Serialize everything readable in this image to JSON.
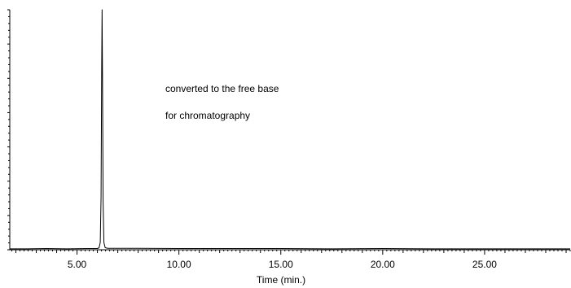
{
  "chart_data": {
    "type": "line",
    "title": "",
    "xlabel": "Time (min.)",
    "ylabel": "",
    "xlim": [
      1.7,
      29.2
    ],
    "ylim": [
      0,
      100
    ],
    "x_ticks": [
      5.0,
      10.0,
      15.0,
      20.0,
      25.0
    ],
    "x_tick_labels": [
      "5.00",
      "10.00",
      "15.00",
      "20.00",
      "25.00"
    ],
    "grid": false,
    "legend": "none",
    "series": [
      {
        "color": "#000000",
        "points": [
          [
            1.7,
            0.4
          ],
          [
            2.5,
            0.4
          ],
          [
            3.5,
            0.5
          ],
          [
            4.5,
            0.4
          ],
          [
            5.5,
            0.5
          ],
          [
            6.0,
            0.5
          ],
          [
            6.08,
            0.8
          ],
          [
            6.14,
            3.0
          ],
          [
            6.18,
            22.0
          ],
          [
            6.21,
            75.0
          ],
          [
            6.23,
            100.0
          ],
          [
            6.25,
            72.0
          ],
          [
            6.28,
            20.0
          ],
          [
            6.32,
            3.0
          ],
          [
            6.38,
            0.9
          ],
          [
            6.5,
            0.6
          ],
          [
            8.0,
            0.6
          ],
          [
            10.0,
            0.5
          ],
          [
            12.5,
            0.5
          ],
          [
            15.0,
            0.5
          ],
          [
            17.5,
            0.4
          ],
          [
            20.0,
            0.5
          ],
          [
            22.5,
            0.4
          ],
          [
            25.0,
            0.4
          ],
          [
            27.5,
            0.4
          ],
          [
            29.2,
            0.4
          ]
        ]
      }
    ],
    "annotations": [
      "converted to the free base",
      "for chromatography"
    ]
  }
}
